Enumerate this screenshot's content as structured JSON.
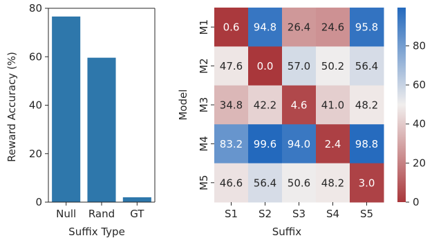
{
  "chart_data": [
    {
      "type": "bar",
      "xlabel": "Suffix Type",
      "ylabel": "Reward Accuracy (%)",
      "categories": [
        "Null",
        "Rand",
        "GT"
      ],
      "values": [
        76.6,
        59.6,
        2.0
      ],
      "ylim": [
        0,
        80
      ],
      "yticks": [
        0,
        20,
        40,
        60,
        80
      ],
      "bar_color": "#2e77ab",
      "grid": false
    },
    {
      "type": "heatmap",
      "xlabel": "Suffix",
      "ylabel": "Model",
      "x": [
        "S1",
        "S2",
        "S3",
        "S4",
        "S5"
      ],
      "y": [
        "M1",
        "M2",
        "M3",
        "M4",
        "M5"
      ],
      "values": [
        [
          0.6,
          94.8,
          26.4,
          24.6,
          95.8
        ],
        [
          47.6,
          0.0,
          57.0,
          50.2,
          56.4
        ],
        [
          34.8,
          42.2,
          4.6,
          41.0,
          48.2
        ],
        [
          83.2,
          99.6,
          94.0,
          2.4,
          98.8
        ],
        [
          46.6,
          56.4,
          50.6,
          48.2,
          3.0
        ]
      ],
      "value_labels": [
        [
          "0.6",
          "94.8",
          "26.4",
          "24.6",
          "95.8"
        ],
        [
          "47.6",
          "0.0",
          "57.0",
          "50.2",
          "56.4"
        ],
        [
          "34.8",
          "42.2",
          "4.6",
          "41.0",
          "48.2"
        ],
        [
          "83.2",
          "99.6",
          "94.0",
          "2.4",
          "98.8"
        ],
        [
          "46.6",
          "56.4",
          "50.6",
          "48.2",
          "3.0"
        ]
      ],
      "colormap": "vlag_r (red-white-blue)",
      "color_low": "#a9373b",
      "color_mid": "#f1eeed",
      "color_high": "#2369bd",
      "colorbar_range": [
        0,
        99.6
      ],
      "colorbar_ticks": [
        0,
        20,
        40,
        60,
        80
      ]
    }
  ]
}
